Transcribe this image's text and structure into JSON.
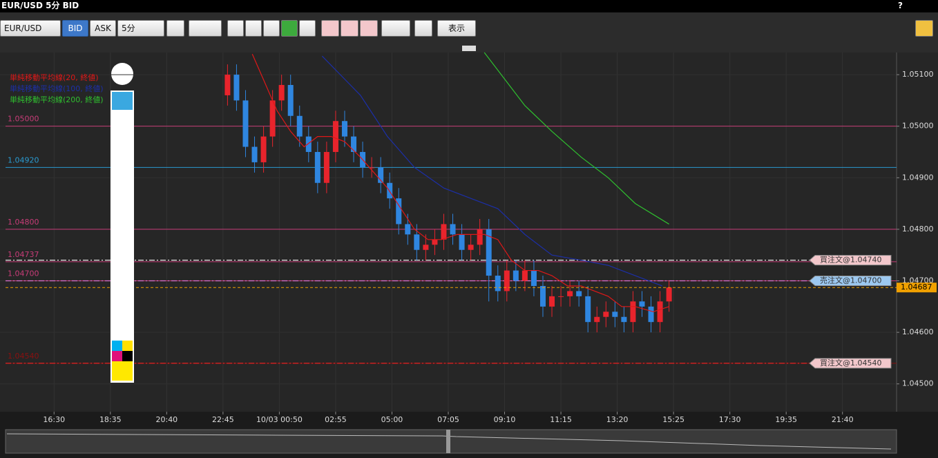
{
  "window": {
    "title": "EUR/USD 5分 BID",
    "help": "?"
  },
  "toolbar": {
    "symbol": "EUR/USD",
    "bid": "BID",
    "ask": "ASK",
    "timeframe": "5分",
    "view": "表示"
  },
  "chart_data": {
    "type": "candlestick",
    "xlim": [
      -24,
      374
    ],
    "ylim": [
      1.04446,
      1.05143
    ],
    "xticks": [
      {
        "value": 0,
        "label": "16:30"
      },
      {
        "value": 25,
        "label": "18:35"
      },
      {
        "value": 50,
        "label": "20:40"
      },
      {
        "value": 75,
        "label": "22:45"
      },
      {
        "value": 100,
        "label": "10/03 00:50"
      },
      {
        "value": 125,
        "label": "02:55"
      },
      {
        "value": 150,
        "label": "05:00"
      },
      {
        "value": 175,
        "label": "07:05"
      },
      {
        "value": 200,
        "label": "09:10"
      },
      {
        "value": 225,
        "label": "11:15"
      },
      {
        "value": 250,
        "label": "13:20"
      },
      {
        "value": 275,
        "label": "15:25"
      },
      {
        "value": 300,
        "label": "17:30"
      },
      {
        "value": 325,
        "label": "19:35"
      },
      {
        "value": 350,
        "label": "21:40"
      }
    ],
    "yticks": [
      {
        "value": 1.051,
        "label": "1.05100"
      },
      {
        "value": 1.05,
        "label": "1.05000"
      },
      {
        "value": 1.049,
        "label": "1.04900"
      },
      {
        "value": 1.048,
        "label": "1.04800"
      },
      {
        "value": 1.047,
        "label": "1.04700"
      },
      {
        "value": 1.046,
        "label": "1.04600"
      },
      {
        "value": 1.045,
        "label": "1.04500"
      }
    ],
    "grid": true,
    "up_color": "#e8242c",
    "down_color": "#2f86e0",
    "candles": {
      "x": [
        77,
        81,
        85,
        89,
        93,
        97,
        101,
        105,
        109,
        113,
        117,
        121,
        125,
        129,
        133,
        137,
        141,
        145,
        149,
        153,
        157,
        161,
        165,
        169,
        173,
        177,
        181,
        185,
        189,
        193,
        197,
        201,
        205,
        209,
        213,
        217,
        221,
        225,
        229,
        233,
        237,
        241,
        245,
        249,
        253,
        257,
        261,
        265,
        269,
        273
      ],
      "open": [
        1.0506,
        1.051,
        1.0505,
        1.0496,
        1.0493,
        1.0498,
        1.0505,
        1.0508,
        1.0502,
        1.0498,
        1.0495,
        1.0489,
        1.0495,
        1.0501,
        1.0498,
        1.0495,
        1.0492,
        1.0492,
        1.0489,
        1.0486,
        1.0481,
        1.0479,
        1.0476,
        1.0477,
        1.0478,
        1.0481,
        1.0479,
        1.0476,
        1.0477,
        1.048,
        1.0471,
        1.0468,
        1.0472,
        1.047,
        1.0472,
        1.0469,
        1.0465,
        1.0467,
        1.0467,
        1.0468,
        1.0467,
        1.0462,
        1.0463,
        1.0464,
        1.0463,
        1.0462,
        1.0466,
        1.0465,
        1.0462,
        1.0466
      ],
      "high": [
        1.0512,
        1.0512,
        1.0507,
        1.0498,
        1.05,
        1.0507,
        1.051,
        1.051,
        1.0504,
        1.05,
        1.0497,
        1.0497,
        1.0503,
        1.0503,
        1.05,
        1.0497,
        1.0494,
        1.0494,
        1.0491,
        1.0488,
        1.0483,
        1.0481,
        1.0479,
        1.048,
        1.0483,
        1.0483,
        1.0481,
        1.0479,
        1.0482,
        1.0482,
        1.0473,
        1.0474,
        1.0474,
        1.0474,
        1.0474,
        1.0471,
        1.0469,
        1.0469,
        1.047,
        1.047,
        1.0469,
        1.0465,
        1.0466,
        1.0466,
        1.0465,
        1.0468,
        1.0468,
        1.0467,
        1.0468,
        1.047
      ],
      "low": [
        1.0504,
        1.0503,
        1.0494,
        1.0491,
        1.0491,
        1.0496,
        1.0503,
        1.05,
        1.0496,
        1.0493,
        1.0487,
        1.0487,
        1.0493,
        1.0496,
        1.0493,
        1.049,
        1.049,
        1.0487,
        1.0484,
        1.0479,
        1.0477,
        1.0474,
        1.0474,
        1.0475,
        1.0476,
        1.0477,
        1.0474,
        1.0474,
        1.0475,
        1.0466,
        1.0466,
        1.0466,
        1.0468,
        1.0468,
        1.0467,
        1.0463,
        1.0463,
        1.0465,
        1.0465,
        1.0465,
        1.046,
        1.046,
        1.0461,
        1.0461,
        1.046,
        1.046,
        1.0463,
        1.046,
        1.046,
        1.0464
      ],
      "close": [
        1.051,
        1.0505,
        1.0496,
        1.0493,
        1.0498,
        1.0505,
        1.0508,
        1.0502,
        1.0498,
        1.0495,
        1.0489,
        1.0495,
        1.0501,
        1.0498,
        1.0495,
        1.0492,
        1.0492,
        1.0489,
        1.0486,
        1.0481,
        1.0479,
        1.0476,
        1.0477,
        1.0478,
        1.0481,
        1.0479,
        1.0476,
        1.0477,
        1.048,
        1.0471,
        1.0468,
        1.0472,
        1.047,
        1.0472,
        1.0469,
        1.0465,
        1.0467,
        1.0467,
        1.0468,
        1.0467,
        1.0462,
        1.0463,
        1.0464,
        1.0463,
        1.0462,
        1.0466,
        1.0465,
        1.0462,
        1.0466,
        1.04687
      ]
    },
    "series": [
      {
        "name": "単純移動平均線(20, 終値)",
        "color": "#e01818",
        "x": [
          88,
          93,
          99,
          105,
          111,
          117,
          123,
          129,
          136,
          142,
          148,
          154,
          160,
          166,
          172,
          179,
          191,
          197,
          203,
          209,
          215,
          221,
          228,
          234,
          240,
          246,
          252,
          258,
          266,
          273
        ],
        "values": [
          1.0514,
          1.0509,
          1.0503,
          1.0499,
          1.0496,
          1.0498,
          1.0498,
          1.0497,
          1.0494,
          1.0491,
          1.0488,
          1.0484,
          1.048,
          1.0478,
          1.0478,
          1.0479,
          1.0479,
          1.0478,
          1.0474,
          1.0472,
          1.0472,
          1.0471,
          1.0469,
          1.0469,
          1.0468,
          1.0467,
          1.0465,
          1.0465,
          1.0464,
          1.0465
        ]
      },
      {
        "name": "単純移動平均線(100, 終値)",
        "color": "#1c2fa8",
        "x": [
          119,
          136,
          148,
          160,
          173,
          185,
          197,
          209,
          221,
          234,
          246,
          258,
          270
        ],
        "values": [
          1.05136,
          1.0506,
          1.0498,
          1.0492,
          1.0488,
          1.0486,
          1.0484,
          1.0479,
          1.0475,
          1.0474,
          1.0473,
          1.0471,
          1.0469
        ]
      },
      {
        "name": "単純移動平均線(200, 終値)",
        "color": "#2fc02f",
        "x": [
          191,
          209,
          221,
          234,
          246,
          258,
          273
        ],
        "values": [
          1.05143,
          1.0504,
          1.0499,
          1.0494,
          1.049,
          1.0485,
          1.0481
        ]
      }
    ],
    "levels": [
      {
        "value": 1.05,
        "label": "1.05000",
        "color": "#c83c78"
      },
      {
        "value": 1.0492,
        "label": "1.04920",
        "color": "#2a9ad0"
      },
      {
        "value": 1.048,
        "label": "1.04800",
        "color": "#c83c78"
      },
      {
        "value": 1.04737,
        "label": "1.04737",
        "color": "#c83c78"
      },
      {
        "value": 1.047,
        "label": "1.04700",
        "color": "#c83c78"
      },
      {
        "value": 1.0454,
        "label": "1.04540",
        "color": "#8a1010"
      }
    ],
    "orders": [
      {
        "value": 1.0474,
        "label": "買注文@1.04740",
        "color": "#e8e8e8",
        "tag": "#f3c7cb"
      },
      {
        "value": 1.047,
        "label": "売注文@1.04700",
        "color": "#e070d0",
        "tag": "#9cc8f0"
      },
      {
        "value": 1.0454,
        "label": "買注文@1.04540",
        "color": "#e82020",
        "tag": "#f3c7cb"
      }
    ],
    "current_price": 1.04687,
    "current_color": "#f0a000"
  }
}
